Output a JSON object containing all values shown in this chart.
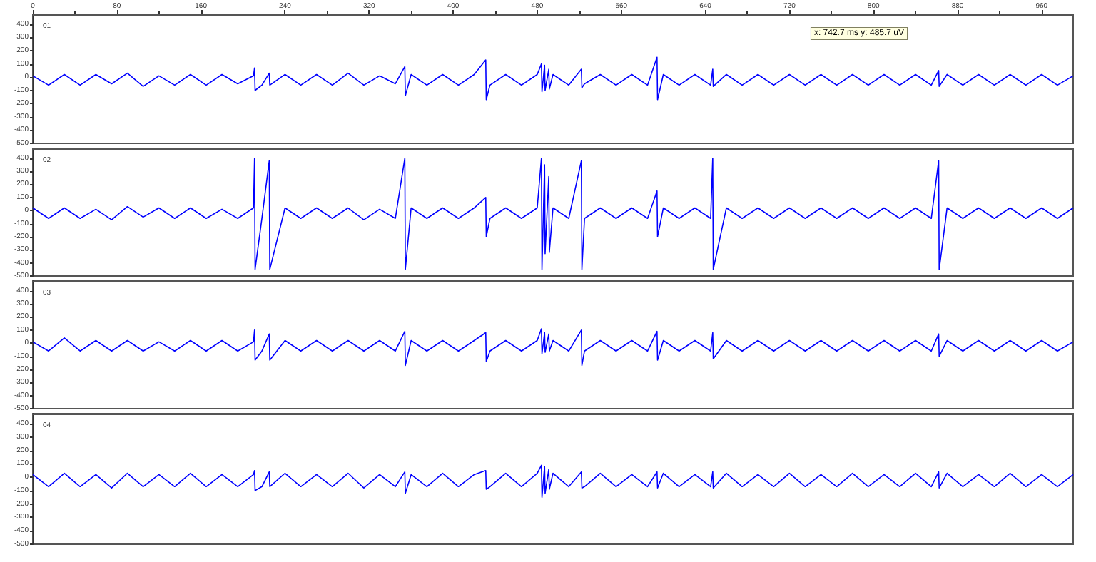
{
  "chart_data": [
    {
      "type": "line",
      "title": "01",
      "xlim": [
        0,
        990
      ],
      "xticks": [
        0,
        80,
        160,
        240,
        320,
        400,
        480,
        560,
        640,
        720,
        800,
        880,
        960
      ],
      "ylim": [
        -500,
        475
      ],
      "yticks": [
        400,
        300,
        200,
        100,
        0,
        -100,
        -200,
        -300,
        -400,
        -500
      ],
      "grid": false,
      "marker": "none",
      "annotations": [
        "x: 742.7 ms y: 485.7 uV"
      ],
      "series": [
        {
          "color": "#0000ff",
          "x": [
            0,
            15,
            30,
            45,
            60,
            75,
            90,
            105,
            120,
            135,
            150,
            165,
            180,
            195,
            210,
            211,
            211.5,
            218,
            225,
            225.5,
            240,
            255,
            270,
            285,
            300,
            315,
            330,
            345,
            354,
            354.5,
            360,
            375,
            390,
            405,
            420,
            431,
            431.5,
            435,
            450,
            465,
            480,
            484,
            484.5,
            487,
            487.5,
            491,
            491.5,
            495,
            510,
            522,
            522.5,
            525,
            540,
            555,
            570,
            585,
            594,
            594.5,
            600,
            615,
            630,
            645,
            647,
            647.5,
            660,
            675,
            690,
            705,
            720,
            735,
            750,
            765,
            780,
            795,
            810,
            825,
            840,
            855,
            862,
            862.5,
            870,
            885,
            900,
            915,
            930,
            945,
            960,
            975,
            990
          ],
          "values": [
            10,
            -60,
            20,
            -60,
            20,
            -50,
            30,
            -70,
            10,
            -60,
            20,
            -60,
            20,
            -50,
            10,
            70,
            -100,
            -60,
            30,
            -60,
            20,
            -60,
            20,
            -60,
            30,
            -60,
            10,
            -50,
            80,
            -140,
            20,
            -60,
            20,
            -60,
            20,
            130,
            -170,
            -60,
            20,
            -60,
            20,
            100,
            -110,
            90,
            -100,
            60,
            -90,
            20,
            -60,
            60,
            -80,
            -50,
            20,
            -60,
            20,
            -60,
            150,
            -170,
            20,
            -60,
            20,
            -60,
            60,
            -70,
            20,
            -60,
            20,
            -60,
            20,
            -60,
            20,
            -60,
            20,
            -60,
            20,
            -60,
            20,
            -60,
            50,
            -70,
            20,
            -60,
            20,
            -60,
            20,
            -60,
            20,
            -60,
            10
          ]
        }
      ]
    },
    {
      "type": "line",
      "title": "02",
      "xlim": [
        0,
        990
      ],
      "xticks": [
        0,
        80,
        160,
        240,
        320,
        400,
        480,
        560,
        640,
        720,
        800,
        880,
        960
      ],
      "ylim": [
        -500,
        475
      ],
      "yticks": [
        400,
        300,
        200,
        100,
        0,
        -100,
        -200,
        -300,
        -400,
        -500
      ],
      "grid": false,
      "marker": "none",
      "tick_labels": "y",
      "series": [
        {
          "color": "#0000ff",
          "x": [
            0,
            15,
            30,
            45,
            60,
            75,
            90,
            105,
            120,
            135,
            150,
            165,
            180,
            195,
            210,
            211,
            211.5,
            218,
            225,
            225.5,
            240,
            255,
            270,
            285,
            300,
            315,
            330,
            345,
            354,
            354.5,
            360,
            375,
            390,
            405,
            420,
            431,
            431.5,
            435,
            450,
            465,
            480,
            484,
            484.5,
            487,
            487.5,
            491,
            491.5,
            495,
            510,
            522,
            522.5,
            525,
            540,
            555,
            570,
            585,
            594,
            594.5,
            600,
            615,
            630,
            645,
            647,
            647.5,
            660,
            675,
            690,
            705,
            720,
            735,
            750,
            765,
            780,
            795,
            810,
            825,
            840,
            855,
            862,
            862.5,
            870,
            885,
            900,
            915,
            930,
            945,
            960,
            975,
            990
          ],
          "values": [
            20,
            -60,
            20,
            -60,
            10,
            -70,
            30,
            -50,
            20,
            -60,
            20,
            -60,
            10,
            -60,
            20,
            400,
            -450,
            -60,
            380,
            -450,
            20,
            -60,
            20,
            -60,
            20,
            -70,
            10,
            -60,
            400,
            -450,
            20,
            -60,
            20,
            -60,
            20,
            100,
            -200,
            -60,
            20,
            -60,
            20,
            400,
            -450,
            350,
            -330,
            260,
            -320,
            20,
            -60,
            380,
            -450,
            -60,
            20,
            -60,
            20,
            -60,
            150,
            -200,
            20,
            -60,
            20,
            -60,
            400,
            -450,
            20,
            -60,
            20,
            -60,
            20,
            -60,
            20,
            -60,
            20,
            -60,
            20,
            -60,
            20,
            -60,
            380,
            -450,
            20,
            -60,
            20,
            -60,
            20,
            -60,
            20,
            -60,
            20
          ]
        }
      ]
    },
    {
      "type": "line",
      "title": "03",
      "xlim": [
        0,
        990
      ],
      "xticks": [
        0,
        80,
        160,
        240,
        320,
        400,
        480,
        560,
        640,
        720,
        800,
        880,
        960
      ],
      "ylim": [
        -500,
        475
      ],
      "yticks": [
        400,
        300,
        200,
        100,
        0,
        -100,
        -200,
        -300,
        -400,
        -500
      ],
      "grid": false,
      "marker": "none",
      "tick_labels": "y",
      "series": [
        {
          "color": "#0000ff",
          "x": [
            0,
            15,
            30,
            45,
            60,
            75,
            90,
            105,
            120,
            135,
            150,
            165,
            180,
            195,
            210,
            211,
            211.5,
            218,
            225,
            225.5,
            240,
            255,
            270,
            285,
            300,
            315,
            330,
            345,
            354,
            354.5,
            360,
            375,
            390,
            405,
            420,
            431,
            431.5,
            435,
            450,
            465,
            480,
            484,
            484.5,
            487,
            487.5,
            491,
            491.5,
            495,
            510,
            522,
            522.5,
            525,
            540,
            555,
            570,
            585,
            594,
            594.5,
            600,
            615,
            630,
            645,
            647,
            647.5,
            660,
            675,
            690,
            705,
            720,
            735,
            750,
            765,
            780,
            795,
            810,
            825,
            840,
            855,
            862,
            862.5,
            870,
            885,
            900,
            915,
            930,
            945,
            960,
            975,
            990
          ],
          "values": [
            10,
            -60,
            40,
            -60,
            20,
            -60,
            20,
            -60,
            10,
            -60,
            20,
            -60,
            20,
            -60,
            10,
            100,
            -130,
            -60,
            70,
            -130,
            20,
            -60,
            20,
            -60,
            20,
            -60,
            20,
            -60,
            90,
            -170,
            20,
            -60,
            20,
            -60,
            20,
            80,
            -140,
            -60,
            20,
            -60,
            20,
            110,
            -80,
            80,
            -70,
            70,
            -60,
            20,
            -60,
            100,
            -170,
            -60,
            20,
            -60,
            20,
            -60,
            90,
            -130,
            20,
            -60,
            20,
            -60,
            80,
            -120,
            20,
            -60,
            20,
            -60,
            20,
            -60,
            20,
            -60,
            20,
            -60,
            20,
            -60,
            20,
            -60,
            70,
            -100,
            20,
            -60,
            20,
            -60,
            20,
            -60,
            20,
            -60,
            10
          ]
        }
      ]
    },
    {
      "type": "line",
      "title": "04",
      "xlim": [
        0,
        990
      ],
      "xticks": [
        0,
        80,
        160,
        240,
        320,
        400,
        480,
        560,
        640,
        720,
        800,
        880,
        960
      ],
      "ylim": [
        -500,
        475
      ],
      "yticks": [
        400,
        300,
        200,
        100,
        0,
        -100,
        -200,
        -300,
        -400,
        -500
      ],
      "grid": false,
      "marker": "none",
      "tick_labels": "y",
      "series": [
        {
          "color": "#0000ff",
          "x": [
            0,
            15,
            30,
            45,
            60,
            75,
            90,
            105,
            120,
            135,
            150,
            165,
            180,
            195,
            210,
            211,
            211.5,
            218,
            225,
            225.5,
            240,
            255,
            270,
            285,
            300,
            315,
            330,
            345,
            354,
            354.5,
            360,
            375,
            390,
            405,
            420,
            431,
            431.5,
            435,
            450,
            465,
            480,
            484,
            484.5,
            487,
            487.5,
            491,
            491.5,
            495,
            510,
            522,
            522.5,
            525,
            540,
            555,
            570,
            585,
            594,
            594.5,
            600,
            615,
            630,
            645,
            647,
            647.5,
            660,
            675,
            690,
            705,
            720,
            735,
            750,
            765,
            780,
            795,
            810,
            825,
            840,
            855,
            862,
            862.5,
            870,
            885,
            900,
            915,
            930,
            945,
            960,
            975,
            990
          ],
          "values": [
            20,
            -70,
            30,
            -70,
            20,
            -80,
            30,
            -70,
            20,
            -70,
            30,
            -70,
            20,
            -70,
            20,
            50,
            -100,
            -70,
            40,
            -70,
            30,
            -70,
            20,
            -70,
            30,
            -80,
            20,
            -70,
            40,
            -120,
            20,
            -70,
            30,
            -70,
            20,
            50,
            -90,
            -70,
            30,
            -70,
            30,
            90,
            -150,
            80,
            -120,
            60,
            -90,
            30,
            -70,
            40,
            -80,
            -70,
            30,
            -70,
            20,
            -70,
            40,
            -80,
            30,
            -70,
            20,
            -70,
            40,
            -80,
            30,
            -70,
            20,
            -70,
            30,
            -70,
            20,
            -70,
            30,
            -70,
            20,
            -70,
            30,
            -70,
            40,
            -80,
            30,
            -70,
            20,
            -70,
            30,
            -70,
            20,
            -70,
            20
          ]
        }
      ]
    }
  ]
}
